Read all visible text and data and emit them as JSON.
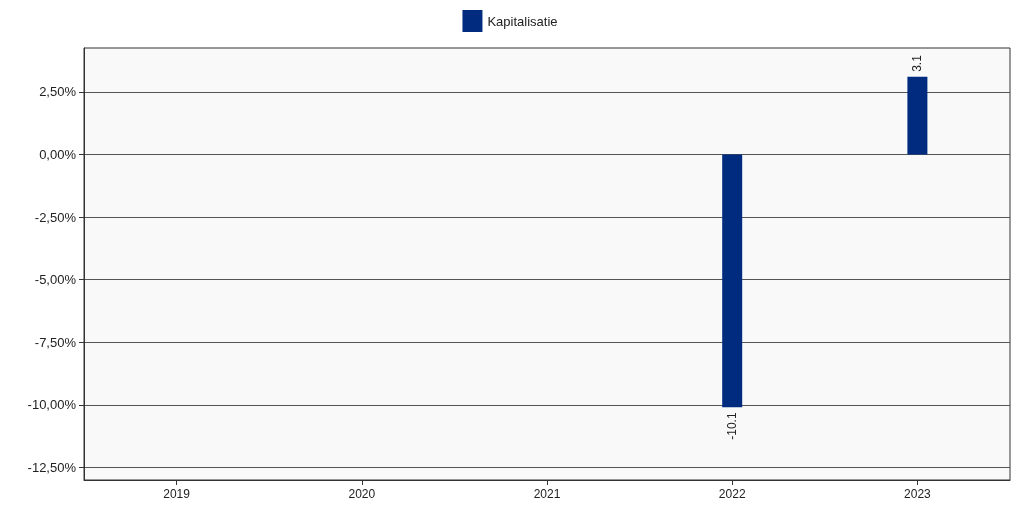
{
  "chart_data": {
    "type": "bar",
    "categories": [
      "2019",
      "2020",
      "2021",
      "2022",
      "2023"
    ],
    "series": [
      {
        "name": "Kapitalisatie",
        "color": "#002b7f",
        "values": [
          null,
          null,
          null,
          -10.1,
          3.1
        ],
        "value_labels": [
          null,
          null,
          null,
          "-10.1",
          "3.1"
        ]
      }
    ],
    "ylim": [
      -13,
      4.25
    ],
    "yticks": [
      {
        "value": -12.5,
        "label": "-12,50%"
      },
      {
        "value": -10,
        "label": "-10,00%"
      },
      {
        "value": -7.5,
        "label": "-7,50%"
      },
      {
        "value": -5,
        "label": "-5,00%"
      },
      {
        "value": -2.5,
        "label": "-2,50%"
      },
      {
        "value": 0,
        "label": "0,00%"
      },
      {
        "value": 2.5,
        "label": "2,50%"
      }
    ],
    "grid": "y",
    "legend": "top"
  }
}
